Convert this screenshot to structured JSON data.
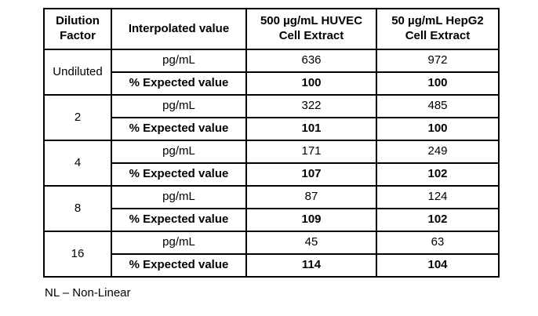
{
  "table": {
    "headers": [
      "Dilution Factor",
      "Interpolated value",
      "500 µg/mL HUVEC Cell Extract",
      "50 µg/mL HepG2 Cell Extract"
    ],
    "row_labels": {
      "pg": "pg/mL",
      "pct": "% Expected value"
    },
    "groups": [
      {
        "factor": "Undiluted",
        "pg": [
          "636",
          "972"
        ],
        "pct": [
          "100",
          "100"
        ]
      },
      {
        "factor": "2",
        "pg": [
          "322",
          "485"
        ],
        "pct": [
          "101",
          "100"
        ]
      },
      {
        "factor": "4",
        "pg": [
          "171",
          "249"
        ],
        "pct": [
          "107",
          "102"
        ]
      },
      {
        "factor": "8",
        "pg": [
          "87",
          "124"
        ],
        "pct": [
          "109",
          "102"
        ]
      },
      {
        "factor": "16",
        "pg": [
          "45",
          "63"
        ],
        "pct": [
          "114",
          "104"
        ]
      }
    ]
  },
  "footnote": "NL – Non-Linear"
}
